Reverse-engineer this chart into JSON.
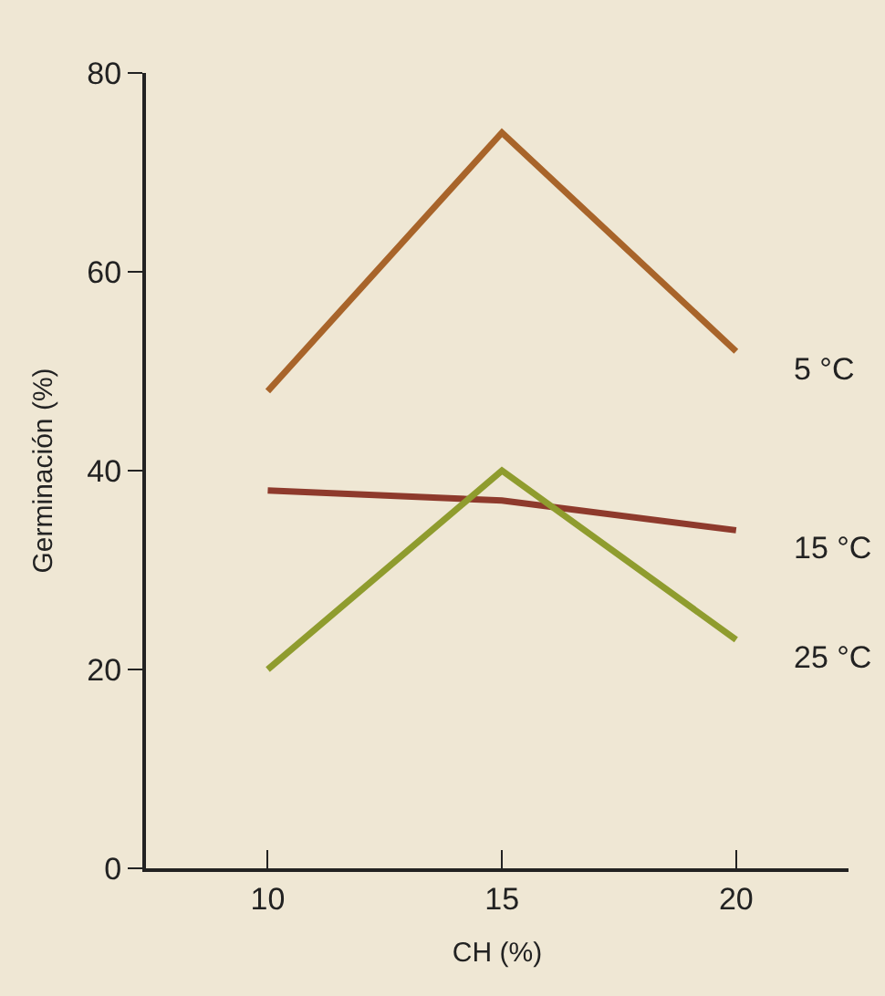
{
  "chart_data": {
    "type": "line",
    "xlabel": "CH (%)",
    "ylabel": "Germinación (%)",
    "x": [
      10,
      15,
      20
    ],
    "series": [
      {
        "name": "5 °C",
        "color": "#a8642a",
        "values": [
          48,
          74,
          52
        ]
      },
      {
        "name": "15 °C",
        "color": "#8e3a2c",
        "values": [
          38,
          37,
          34
        ]
      },
      {
        "name": "25 °C",
        "color": "#8f9c2e",
        "values": [
          20,
          40,
          23
        ]
      }
    ],
    "xlim": [
      7.4,
      22.4
    ],
    "xticks": [
      10,
      15,
      20
    ],
    "ylim": [
      0,
      80
    ],
    "yticks": [
      0,
      20,
      40,
      60,
      80
    ],
    "grid": false,
    "legend": false,
    "marker": "none",
    "line_style": "solid"
  }
}
